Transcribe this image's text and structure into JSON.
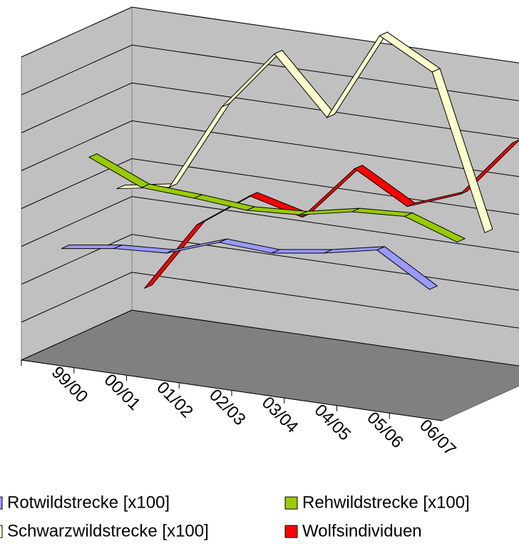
{
  "chart_data": {
    "type": "line3d",
    "categories": [
      "99/00",
      "00/01",
      "01/02",
      "02/03",
      "03/04",
      "04/05",
      "05/06",
      "06/07"
    ],
    "ylim": [
      0,
      200
    ],
    "yticks": [
      0,
      25,
      50,
      75,
      100,
      125,
      150,
      175,
      200
    ],
    "grid": true,
    "legend": "bottom",
    "series": [
      {
        "name": "Rotwildstrecke [x100]",
        "color": "#9999ff",
        "values": [
          72,
          77,
          79,
          91,
          89,
          94,
          101,
          80
        ]
      },
      {
        "name": "Rehwildstrecke [x100]",
        "color": "#99cc00",
        "values": [
          124,
          109,
          107,
          104,
          106,
          113,
          115,
          103
        ]
      },
      {
        "name": "Schwarzwildstrecke [x100]",
        "color": "#ffffcc",
        "values": [
          95,
          101,
          159,
          199,
          162,
          221,
          202,
          101
        ]
      },
      {
        "name": "Wolfsindividuen",
        "color": "#ff0000",
        "values": [
          21,
          68,
          92,
          83,
          120,
          100,
          113,
          152
        ]
      }
    ]
  }
}
